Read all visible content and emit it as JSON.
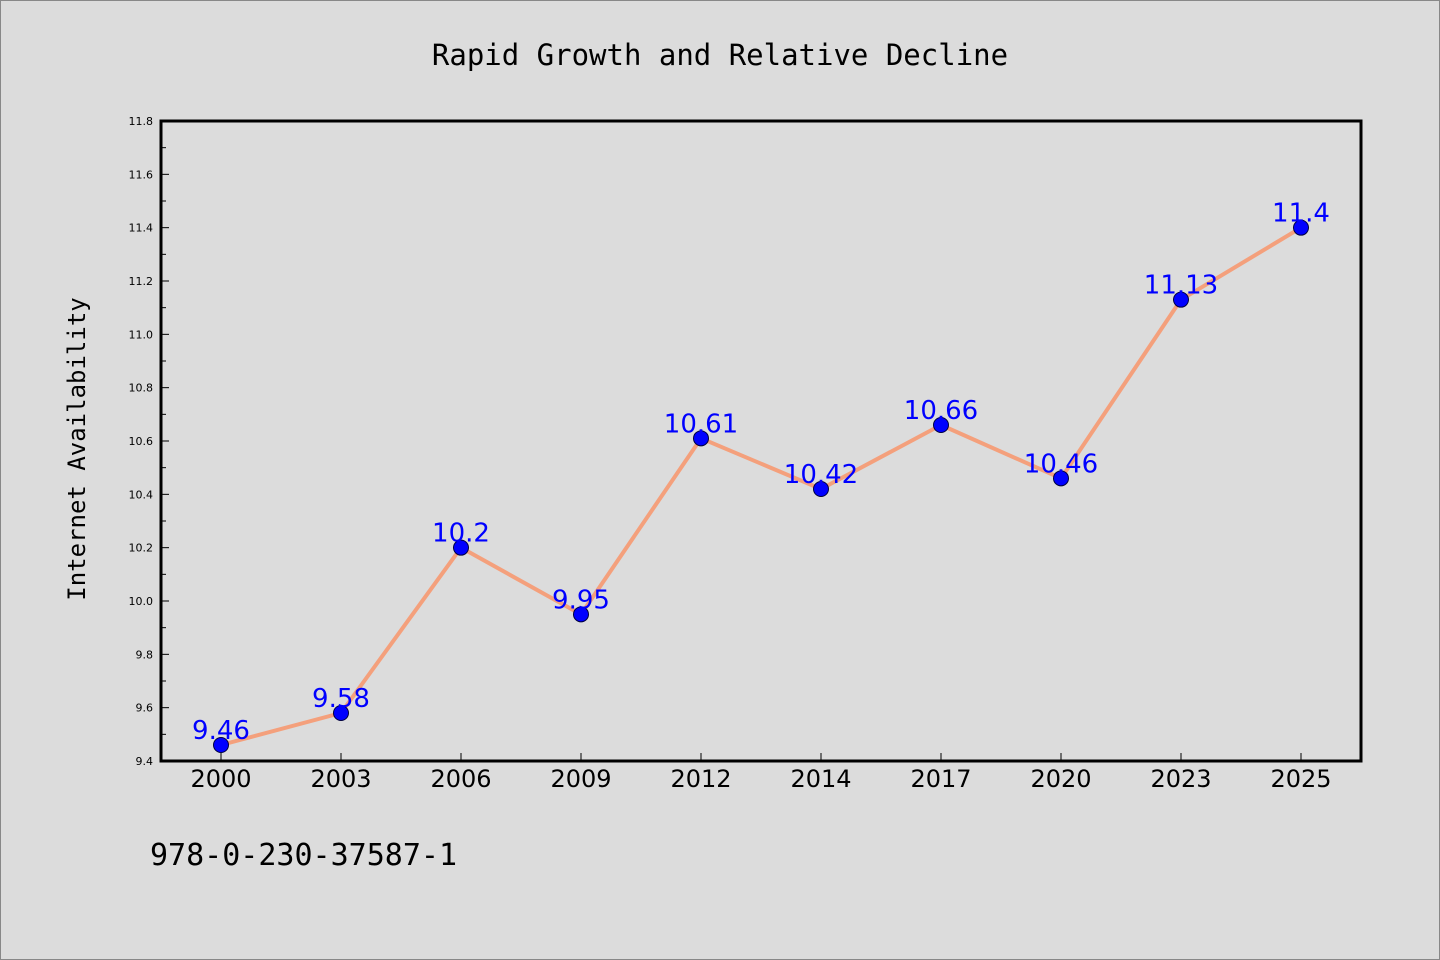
{
  "chart_data": {
    "type": "line",
    "title": "Rapid Growth and Relative Decline",
    "xlabel": "",
    "ylabel": "Internet Availability",
    "categories": [
      "2000",
      "2003",
      "2006",
      "2009",
      "2012",
      "2014",
      "2017",
      "2020",
      "2023",
      "2025"
    ],
    "series": [
      {
        "values": [
          9.46,
          9.58,
          10.2,
          9.95,
          10.61,
          10.42,
          10.66,
          10.46,
          11.13,
          11.4
        ],
        "line_color": "#f4a07c",
        "marker_color": "#0000ff"
      }
    ],
    "data_labels": [
      "9.46",
      "9.58",
      "10.2",
      "9.95",
      "10.61",
      "10.42",
      "10.66",
      "10.46",
      "11.13",
      "11.4"
    ],
    "ylim": [
      9.4,
      11.8
    ],
    "yticks": [
      9.4,
      9.6,
      9.8,
      10.0,
      10.2,
      10.4,
      10.6,
      10.8,
      11.0,
      11.2,
      11.4,
      11.6,
      11.8
    ],
    "ytick_labels": [
      "9.4",
      "9.6",
      "9.8",
      "10.0",
      "10.2",
      "10.4",
      "10.6",
      "10.8",
      "11.0",
      "11.2",
      "11.4",
      "11.6",
      "11.8"
    ],
    "grid": false,
    "legend": "none"
  },
  "footnote": "978-0-230-37587-1"
}
